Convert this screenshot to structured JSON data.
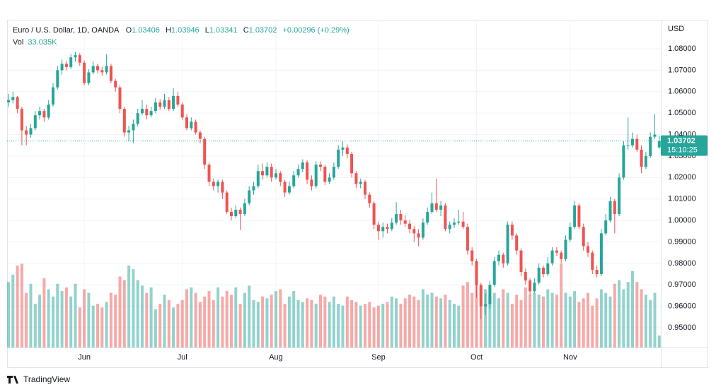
{
  "chart_data": {
    "type": "candlestick",
    "title": "Euro / U.S. Dollar, 1D, OANDA",
    "ohlc_labels": [
      "O",
      "H",
      "L",
      "C"
    ],
    "change_label": "+0.00296 (+0.29%)",
    "volume_title": "Vol",
    "volume_last_label": "33.035K",
    "currency": "USD",
    "countdown": "15:10:25",
    "brand": "TradingView",
    "up_color": "#26a69a",
    "down_color": "#ef5350",
    "grid": true,
    "ylim": [
      0.9408,
      1.0935
    ],
    "yticks": [
      {
        "value": 1.08,
        "label": "1.08000"
      },
      {
        "value": 1.07,
        "label": "1.07000"
      },
      {
        "value": 1.06,
        "label": "1.06000"
      },
      {
        "value": 1.05,
        "label": "1.05000"
      },
      {
        "value": 1.04,
        "label": "1.04000"
      },
      {
        "value": 1.03,
        "label": "1.03000"
      },
      {
        "value": 1.02,
        "label": "1.02000"
      },
      {
        "value": 1.01,
        "label": "1.01000"
      },
      {
        "value": 1.0,
        "label": "1.00000"
      },
      {
        "value": 0.99,
        "label": "0.99000"
      },
      {
        "value": 0.98,
        "label": "0.98000"
      },
      {
        "value": 0.97,
        "label": "0.97000"
      },
      {
        "value": 0.96,
        "label": "0.96000"
      },
      {
        "value": 0.95,
        "label": "0.95000"
      }
    ],
    "volume_lim": [
      0,
      900
    ],
    "categories": [
      null,
      null,
      null,
      null,
      null,
      null,
      null,
      null,
      null,
      null,
      null,
      null,
      null,
      null,
      null,
      null,
      null,
      "Jun",
      null,
      null,
      null,
      null,
      null,
      null,
      null,
      null,
      null,
      null,
      null,
      null,
      null,
      null,
      null,
      null,
      null,
      null,
      null,
      null,
      null,
      "Jul",
      null,
      null,
      null,
      null,
      null,
      null,
      null,
      null,
      null,
      null,
      null,
      null,
      null,
      null,
      null,
      null,
      null,
      null,
      null,
      null,
      "Aug",
      null,
      null,
      null,
      null,
      null,
      null,
      null,
      null,
      null,
      null,
      null,
      null,
      null,
      null,
      null,
      null,
      null,
      null,
      null,
      null,
      null,
      null,
      "Sep",
      null,
      null,
      null,
      null,
      null,
      null,
      null,
      null,
      null,
      null,
      null,
      null,
      null,
      null,
      null,
      null,
      null,
      null,
      null,
      null,
      null,
      "Oct",
      null,
      null,
      null,
      null,
      null,
      null,
      null,
      null,
      null,
      null,
      null,
      null,
      null,
      null,
      null,
      null,
      null,
      null,
      null,
      null,
      "Nov",
      null,
      null,
      null,
      null,
      null,
      null,
      null,
      null,
      null,
      null,
      null,
      null,
      null,
      null,
      null,
      null,
      null,
      null,
      null,
      null
    ],
    "candles": [
      [
        1.055,
        1.059,
        1.053,
        1.056
      ],
      [
        1.056,
        1.06,
        1.0545,
        1.0575
      ],
      [
        1.0575,
        1.058,
        1.05,
        1.052
      ],
      [
        1.052,
        1.053,
        1.035,
        1.042
      ],
      [
        1.042,
        1.044,
        1.035,
        1.04
      ],
      [
        1.04,
        1.045,
        1.0385,
        1.043
      ],
      [
        1.043,
        1.051,
        1.042,
        1.049
      ],
      [
        1.049,
        1.053,
        1.047,
        1.051
      ],
      [
        1.051,
        1.052,
        1.046,
        1.048
      ],
      [
        1.048,
        1.056,
        1.047,
        1.054
      ],
      [
        1.054,
        1.064,
        1.053,
        1.062
      ],
      [
        1.062,
        1.072,
        1.061,
        1.07
      ],
      [
        1.07,
        1.075,
        1.068,
        1.073
      ],
      [
        1.073,
        1.0745,
        1.07,
        1.0715
      ],
      [
        1.0715,
        1.0775,
        1.0705,
        1.076
      ],
      [
        1.076,
        1.0785,
        1.074,
        1.077
      ],
      [
        1.077,
        1.078,
        1.072,
        1.0735
      ],
      [
        1.0735,
        1.0745,
        1.063,
        1.064
      ],
      [
        1.064,
        1.0705,
        1.063,
        1.069
      ],
      [
        1.069,
        1.074,
        1.068,
        1.072
      ],
      [
        1.072,
        1.073,
        1.0685,
        1.07
      ],
      [
        1.07,
        1.0715,
        1.0675,
        1.069
      ],
      [
        1.069,
        1.0775,
        1.068,
        1.072
      ],
      [
        1.072,
        1.073,
        1.064,
        1.065
      ],
      [
        1.065,
        1.066,
        1.06,
        1.062
      ],
      [
        1.062,
        1.063,
        1.05,
        1.052
      ],
      [
        1.052,
        1.053,
        1.039,
        1.041
      ],
      [
        1.041,
        1.044,
        1.037,
        1.042
      ],
      [
        1.042,
        1.047,
        1.036,
        1.045
      ],
      [
        1.045,
        1.052,
        1.044,
        1.05
      ],
      [
        1.05,
        1.056,
        1.049,
        1.052
      ],
      [
        1.052,
        1.054,
        1.047,
        1.049
      ],
      [
        1.049,
        1.053,
        1.048,
        1.051
      ],
      [
        1.051,
        1.057,
        1.05,
        1.055
      ],
      [
        1.055,
        1.0565,
        1.0515,
        1.053
      ],
      [
        1.053,
        1.059,
        1.052,
        1.056
      ],
      [
        1.056,
        1.0575,
        1.051,
        1.052
      ],
      [
        1.052,
        1.0615,
        1.051,
        1.058
      ],
      [
        1.058,
        1.06,
        1.053,
        1.054
      ],
      [
        1.054,
        1.055,
        1.047,
        1.048
      ],
      [
        1.048,
        1.0495,
        1.042,
        1.043
      ],
      [
        1.043,
        1.048,
        1.042,
        1.046
      ],
      [
        1.046,
        1.047,
        1.04,
        1.041
      ],
      [
        1.041,
        1.042,
        1.036,
        1.038
      ],
      [
        1.038,
        1.039,
        1.024,
        1.026
      ],
      [
        1.026,
        1.027,
        1.016,
        1.018
      ],
      [
        1.018,
        1.0195,
        1.014,
        1.016
      ],
      [
        1.016,
        1.019,
        1.013,
        1.018
      ],
      [
        1.018,
        1.019,
        1.01,
        1.013
      ],
      [
        1.013,
        1.014,
        1.003,
        1.004
      ],
      [
        1.004,
        1.006,
        1.0,
        1.002
      ],
      [
        1.002,
        1.007,
        1.001,
        1.005
      ],
      [
        1.005,
        1.006,
        0.9955,
        1.003
      ],
      [
        1.003,
        1.01,
        1.002,
        1.008
      ],
      [
        1.008,
        1.016,
        1.007,
        1.014
      ],
      [
        1.014,
        1.018,
        1.012,
        1.016
      ],
      [
        1.016,
        1.026,
        1.015,
        1.023
      ],
      [
        1.023,
        1.0265,
        1.019,
        1.021
      ],
      [
        1.021,
        1.027,
        1.02,
        1.025
      ],
      [
        1.025,
        1.0265,
        1.018,
        1.02
      ],
      [
        1.02,
        1.024,
        1.019,
        1.022
      ],
      [
        1.022,
        1.023,
        1.016,
        1.018
      ],
      [
        1.018,
        1.019,
        1.011,
        1.013
      ],
      [
        1.013,
        1.018,
        1.012,
        1.016
      ],
      [
        1.016,
        1.023,
        1.015,
        1.021
      ],
      [
        1.021,
        1.026,
        1.02,
        1.024
      ],
      [
        1.024,
        1.0285,
        1.0225,
        1.027
      ],
      [
        1.027,
        1.028,
        1.017,
        1.019
      ],
      [
        1.019,
        1.021,
        1.014,
        1.016
      ],
      [
        1.016,
        1.0275,
        1.015,
        1.026
      ],
      [
        1.026,
        1.0275,
        1.023,
        1.025
      ],
      [
        1.025,
        1.026,
        1.0165,
        1.018
      ],
      [
        1.018,
        1.022,
        1.017,
        1.02
      ],
      [
        1.02,
        1.027,
        1.019,
        1.025
      ],
      [
        1.025,
        1.035,
        1.024,
        1.033
      ],
      [
        1.033,
        1.0368,
        1.03,
        1.034
      ],
      [
        1.034,
        1.0355,
        1.029,
        1.031
      ],
      [
        1.031,
        1.032,
        1.02,
        1.022
      ],
      [
        1.022,
        1.023,
        1.015,
        1.017
      ],
      [
        1.017,
        1.0195,
        1.015,
        1.018
      ],
      [
        1.018,
        1.019,
        1.01,
        1.012
      ],
      [
        1.012,
        1.013,
        1.006,
        1.008
      ],
      [
        1.008,
        1.009,
        0.996,
        0.998
      ],
      [
        0.998,
        0.9995,
        0.991,
        0.995
      ],
      [
        0.995,
        0.999,
        0.992,
        0.997
      ],
      [
        0.997,
        0.9985,
        0.994,
        0.996
      ],
      [
        0.996,
        1.001,
        0.995,
        0.999
      ],
      [
        0.999,
        1.0085,
        0.998,
        1.003
      ],
      [
        1.003,
        1.005,
        0.998,
        1.0
      ],
      [
        1.0,
        1.0025,
        0.997,
        0.9985
      ],
      [
        0.9985,
        1.0,
        0.994,
        0.996
      ],
      [
        0.996,
        0.9975,
        0.99,
        0.994
      ],
      [
        0.994,
        0.996,
        0.988,
        0.992
      ],
      [
        0.992,
        1.001,
        0.991,
        0.999
      ],
      [
        0.999,
        1.006,
        0.998,
        1.004
      ],
      [
        1.004,
        1.013,
        1.003,
        1.008
      ],
      [
        1.008,
        1.0195,
        1.004,
        1.005
      ],
      [
        1.005,
        1.009,
        1.002,
        1.007
      ],
      [
        1.007,
        1.008,
        0.995,
        0.996
      ],
      [
        0.996,
        0.9995,
        0.994,
        0.998
      ],
      [
        0.998,
        1.001,
        0.9965,
        0.999
      ],
      [
        0.999,
        1.005,
        0.998,
        0.9995
      ],
      [
        0.9995,
        1.004,
        0.996,
        0.997
      ],
      [
        0.997,
        0.9985,
        0.984,
        0.986
      ],
      [
        0.986,
        0.9875,
        0.979,
        0.981
      ],
      [
        0.981,
        0.982,
        0.964,
        0.97
      ],
      [
        0.97,
        0.971,
        0.954,
        0.96
      ],
      [
        0.96,
        0.966,
        0.956,
        0.961
      ],
      [
        0.961,
        0.972,
        0.959,
        0.97
      ],
      [
        0.97,
        0.983,
        0.969,
        0.981
      ],
      [
        0.981,
        0.986,
        0.979,
        0.984
      ],
      [
        0.984,
        0.985,
        0.978,
        0.98
      ],
      [
        0.98,
        0.9995,
        0.979,
        0.998
      ],
      [
        0.998,
        0.9995,
        0.991,
        0.993
      ],
      [
        0.993,
        0.994,
        0.984,
        0.986
      ],
      [
        0.986,
        0.987,
        0.974,
        0.976
      ],
      [
        0.976,
        0.9775,
        0.97,
        0.972
      ],
      [
        0.972,
        0.973,
        0.965,
        0.967
      ],
      [
        0.967,
        0.973,
        0.966,
        0.971
      ],
      [
        0.971,
        0.98,
        0.97,
        0.978
      ],
      [
        0.978,
        0.979,
        0.9735,
        0.975
      ],
      [
        0.975,
        0.983,
        0.974,
        0.98
      ],
      [
        0.98,
        0.9875,
        0.979,
        0.986
      ],
      [
        0.986,
        0.9875,
        0.9835,
        0.985
      ],
      [
        0.985,
        0.986,
        0.98,
        0.982
      ],
      [
        0.982,
        0.993,
        0.981,
        0.991
      ],
      [
        0.991,
        0.999,
        0.99,
        0.997
      ],
      [
        0.997,
        1.009,
        0.996,
        1.007
      ],
      [
        1.007,
        1.008,
        0.996,
        0.997
      ],
      [
        0.997,
        0.9985,
        0.986,
        0.988
      ],
      [
        0.988,
        0.99,
        0.983,
        0.985
      ],
      [
        0.985,
        0.986,
        0.975,
        0.977
      ],
      [
        0.977,
        0.979,
        0.9735,
        0.975
      ],
      [
        0.975,
        0.996,
        0.974,
        0.994
      ],
      [
        0.994,
        1.003,
        0.993,
        1.0
      ],
      [
        1.0,
        1.011,
        0.999,
        1.009
      ],
      [
        1.009,
        1.01,
        0.994,
        1.003
      ],
      [
        1.003,
        1.022,
        1.002,
        1.02
      ],
      [
        1.02,
        1.037,
        1.019,
        1.035
      ],
      [
        1.035,
        1.048,
        1.033,
        1.035
      ],
      [
        1.035,
        1.041,
        1.034,
        1.038
      ],
      [
        1.038,
        1.04,
        1.032,
        1.033
      ],
      [
        1.033,
        1.035,
        1.022,
        1.025
      ],
      [
        1.025,
        1.032,
        1.024,
        1.03
      ],
      [
        1.03,
        1.041,
        1.029,
        1.039
      ],
      [
        1.039,
        1.0495,
        1.038,
        1.04
      ],
      [
        1.03406,
        1.03946,
        1.03341,
        1.03702
      ]
    ],
    "volume": [
      180,
      200,
      225,
      230,
      150,
      175,
      120,
      145,
      190,
      160,
      140,
      175,
      155,
      165,
      140,
      175,
      110,
      160,
      150,
      115,
      120,
      110,
      125,
      150,
      145,
      195,
      185,
      225,
      215,
      185,
      170,
      150,
      165,
      105,
      120,
      145,
      130,
      110,
      120,
      130,
      160,
      165,
      150,
      125,
      140,
      155,
      130,
      165,
      140,
      155,
      145,
      165,
      120,
      150,
      170,
      130,
      125,
      140,
      135,
      145,
      155,
      160,
      120,
      140,
      155,
      130,
      125,
      135,
      130,
      120,
      145,
      140,
      125,
      140,
      120,
      115,
      140,
      130,
      125,
      115,
      120,
      125,
      110,
      115,
      120,
      125,
      140,
      135,
      120,
      135,
      145,
      140,
      130,
      160,
      145,
      150,
      140,
      135,
      145,
      130,
      120,
      115,
      170,
      180,
      150,
      175,
      165,
      160,
      140,
      150,
      135,
      160,
      150,
      120,
      145,
      130,
      165,
      145,
      150,
      145,
      140,
      160,
      150,
      145,
      230,
      150,
      140,
      155,
      125,
      135,
      150,
      115,
      135,
      160,
      150,
      140,
      175,
      185,
      160,
      180,
      210,
      180,
      160,
      145,
      130,
      150,
      33.035
    ]
  }
}
